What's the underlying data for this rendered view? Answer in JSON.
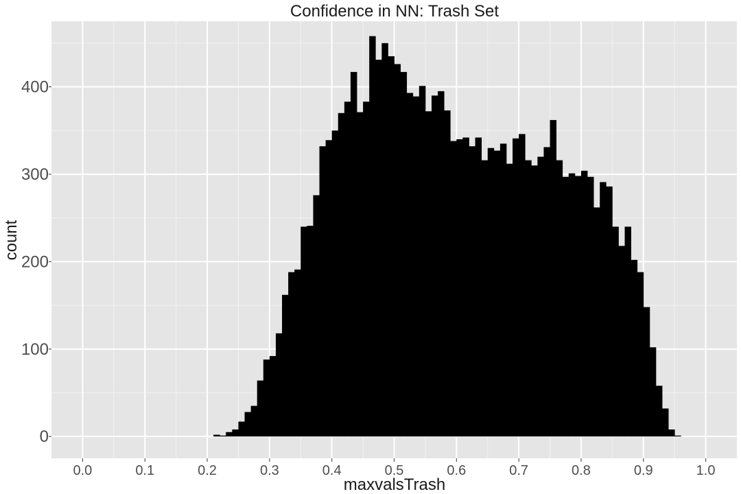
{
  "chart_data": {
    "type": "bar",
    "subtype": "histogram",
    "title": "Confidence in NN: Trash Set",
    "xlabel": "maxvalsTrash",
    "ylabel": "count",
    "xlim": [
      -0.05,
      1.05
    ],
    "ylim": [
      -25,
      475
    ],
    "x_ticks": [
      0.0,
      0.1,
      0.2,
      0.3,
      0.4,
      0.5,
      0.6,
      0.7,
      0.8,
      0.9,
      1.0
    ],
    "x_tick_labels": [
      "0.0",
      "0.1",
      "0.2",
      "0.3",
      "0.4",
      "0.5",
      "0.6",
      "0.7",
      "0.8",
      "0.9",
      "1.0"
    ],
    "y_ticks": [
      0,
      100,
      200,
      300,
      400
    ],
    "y_tick_labels": [
      "0",
      "100",
      "200",
      "300",
      "400"
    ],
    "grid": true,
    "bin_width": 0.01,
    "bins_start": [
      0.21,
      0.22,
      0.23,
      0.24,
      0.25,
      0.26,
      0.27,
      0.28,
      0.29,
      0.3,
      0.31,
      0.32,
      0.33,
      0.34,
      0.35,
      0.36,
      0.37,
      0.38,
      0.39,
      0.4,
      0.41,
      0.42,
      0.43,
      0.44,
      0.45,
      0.46,
      0.47,
      0.48,
      0.49,
      0.5,
      0.51,
      0.52,
      0.53,
      0.54,
      0.55,
      0.56,
      0.57,
      0.58,
      0.59,
      0.6,
      0.61,
      0.62,
      0.63,
      0.64,
      0.65,
      0.66,
      0.67,
      0.68,
      0.69,
      0.7,
      0.71,
      0.72,
      0.73,
      0.74,
      0.75,
      0.76,
      0.77,
      0.78,
      0.79,
      0.8,
      0.81,
      0.82,
      0.83,
      0.84,
      0.85,
      0.86,
      0.87,
      0.88,
      0.89,
      0.9,
      0.91,
      0.92,
      0.93,
      0.94,
      0.95,
      0.96
    ],
    "counts": [
      2,
      1,
      5,
      8,
      17,
      28,
      35,
      64,
      88,
      92,
      118,
      162,
      188,
      191,
      240,
      241,
      276,
      332,
      339,
      350,
      370,
      383,
      417,
      371,
      383,
      458,
      431,
      450,
      435,
      426,
      417,
      393,
      389,
      401,
      372,
      390,
      395,
      373,
      338,
      340,
      342,
      332,
      342,
      316,
      330,
      327,
      335,
      312,
      341,
      346,
      316,
      310,
      320,
      331,
      362,
      316,
      297,
      301,
      298,
      304,
      297,
      262,
      291,
      286,
      240,
      218,
      240,
      202,
      188,
      148,
      102,
      58,
      32,
      8,
      1,
      0
    ]
  }
}
